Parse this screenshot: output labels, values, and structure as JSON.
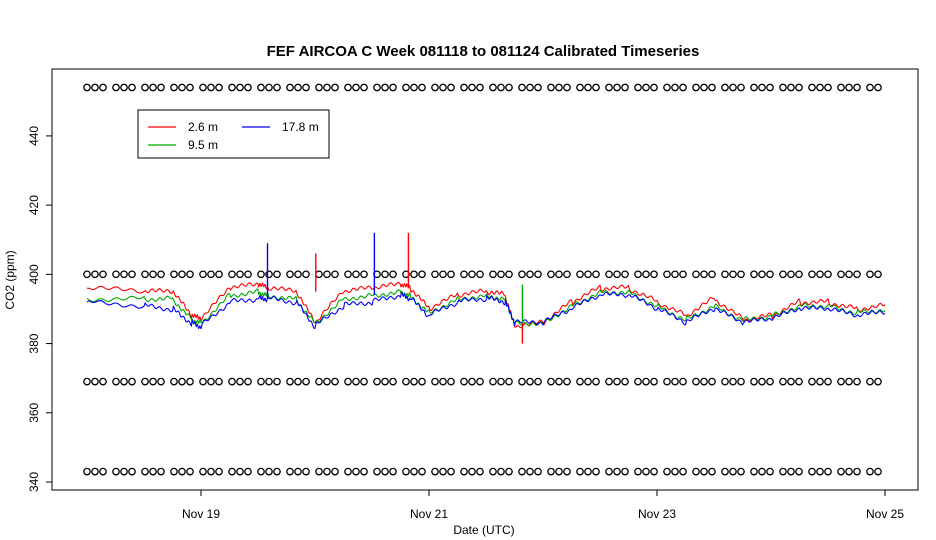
{
  "chart_data": {
    "type": "line",
    "title": "FEF AIRCOA C  Week 081118 to 081124  Calibrated Timeseries",
    "xlabel": "Date (UTC)",
    "ylabel": "CO2 (ppm)",
    "xlim": [
      "2008-11-18T00:00",
      "2008-11-25T00:00"
    ],
    "ylim": [
      340,
      455
    ],
    "x_ticks": [
      "Nov 19",
      "Nov 21",
      "Nov 23",
      "Nov 25"
    ],
    "x_tick_dates": [
      "2008-11-19T00:00",
      "2008-11-21T00:00",
      "2008-11-23T00:00",
      "2008-11-25T00:00"
    ],
    "y_ticks": [
      340,
      360,
      380,
      400,
      420,
      440
    ],
    "grid": false,
    "legend_position": "top-left",
    "series": [
      {
        "name": "2.6 m",
        "color": "#ff0000",
        "x": [
          "2008-11-18T00:00",
          "2008-11-18T12:00",
          "2008-11-18T18:00",
          "2008-11-18T22:00",
          "2008-11-19T00:00",
          "2008-11-19T06:00",
          "2008-11-19T12:00",
          "2008-11-19T14:00",
          "2008-11-19T20:00",
          "2008-11-20T00:00",
          "2008-11-20T06:00",
          "2008-11-20T12:00",
          "2008-11-20T18:00",
          "2008-11-20T20:00",
          "2008-11-21T00:00",
          "2008-11-21T06:00",
          "2008-11-21T12:00",
          "2008-11-21T16:00",
          "2008-11-21T18:00",
          "2008-11-22T00:00",
          "2008-11-22T06:00",
          "2008-11-22T12:00",
          "2008-11-22T18:00",
          "2008-11-23T00:00",
          "2008-11-23T06:00",
          "2008-11-23T12:00",
          "2008-11-23T18:00",
          "2008-11-24T00:00",
          "2008-11-24T06:00",
          "2008-11-24T12:00",
          "2008-11-24T18:00",
          "2008-11-25T00:00"
        ],
        "y": [
          396,
          395,
          395,
          388,
          387,
          396,
          397,
          396,
          395,
          386,
          395,
          396,
          397,
          396,
          390,
          394,
          395,
          394,
          385,
          386,
          392,
          396,
          396,
          392,
          388,
          393,
          387,
          388,
          392,
          392,
          390,
          391
        ]
      },
      {
        "name": "9.5 m",
        "color": "#00aa00",
        "x": [
          "2008-11-18T00:00",
          "2008-11-18T12:00",
          "2008-11-18T18:00",
          "2008-11-18T22:00",
          "2008-11-19T00:00",
          "2008-11-19T06:00",
          "2008-11-19T12:00",
          "2008-11-19T14:00",
          "2008-11-19T20:00",
          "2008-11-20T00:00",
          "2008-11-20T06:00",
          "2008-11-20T12:00",
          "2008-11-20T18:00",
          "2008-11-20T20:00",
          "2008-11-21T00:00",
          "2008-11-21T06:00",
          "2008-11-21T12:00",
          "2008-11-21T16:00",
          "2008-11-21T18:00",
          "2008-11-22T00:00",
          "2008-11-22T06:00",
          "2008-11-22T12:00",
          "2008-11-22T18:00",
          "2008-11-23T00:00",
          "2008-11-23T06:00",
          "2008-11-23T12:00",
          "2008-11-23T18:00",
          "2008-11-24T00:00",
          "2008-11-24T06:00",
          "2008-11-24T12:00",
          "2008-11-24T18:00",
          "2008-11-25T00:00"
        ],
        "y": [
          393,
          393,
          393,
          387,
          386,
          394,
          395,
          394,
          393,
          386,
          393,
          394,
          395,
          394,
          389,
          393,
          394,
          393,
          386,
          386,
          391,
          395,
          395,
          391,
          387,
          391,
          387,
          388,
          391,
          391,
          389,
          390
        ]
      },
      {
        "name": "17.8 m",
        "color": "#0000ff",
        "x": [
          "2008-11-18T00:00",
          "2008-11-18T12:00",
          "2008-11-18T18:00",
          "2008-11-18T22:00",
          "2008-11-19T00:00",
          "2008-11-19T06:00",
          "2008-11-19T12:00",
          "2008-11-19T14:00",
          "2008-11-19T20:00",
          "2008-11-20T00:00",
          "2008-11-20T06:00",
          "2008-11-20T12:00",
          "2008-11-20T18:00",
          "2008-11-20T20:00",
          "2008-11-21T00:00",
          "2008-11-21T06:00",
          "2008-11-21T12:00",
          "2008-11-21T16:00",
          "2008-11-21T18:00",
          "2008-11-22T00:00",
          "2008-11-22T06:00",
          "2008-11-22T12:00",
          "2008-11-22T18:00",
          "2008-11-23T00:00",
          "2008-11-23T06:00",
          "2008-11-23T12:00",
          "2008-11-23T18:00",
          "2008-11-24T00:00",
          "2008-11-24T06:00",
          "2008-11-24T12:00",
          "2008-11-24T18:00",
          "2008-11-25T00:00"
        ],
        "y": [
          392,
          391,
          390,
          386,
          385,
          392,
          393,
          393,
          392,
          385,
          391,
          392,
          394,
          393,
          388,
          392,
          393,
          392,
          386,
          386,
          390,
          394,
          394,
          390,
          386,
          390,
          386,
          387,
          390,
          390,
          388,
          389
        ]
      }
    ],
    "spikes": [
      {
        "series": "17.8 m",
        "x": "2008-11-19T14:00",
        "y": 409
      },
      {
        "series": "2.6 m",
        "x": "2008-11-20T00:10",
        "y": 406
      },
      {
        "series": "17.8 m",
        "x": "2008-11-20T12:30",
        "y": 412
      },
      {
        "series": "2.6 m",
        "x": "2008-11-20T19:40",
        "y": 412
      },
      {
        "series": "2.6 m",
        "x": "2008-11-21T19:40",
        "y": 380
      },
      {
        "series": "9.5 m",
        "x": "2008-11-21T19:40",
        "y": 397
      }
    ],
    "flag_rows": [
      {
        "y": 454
      },
      {
        "y": 400
      },
      {
        "y": 369
      },
      {
        "y": 343
      }
    ]
  }
}
